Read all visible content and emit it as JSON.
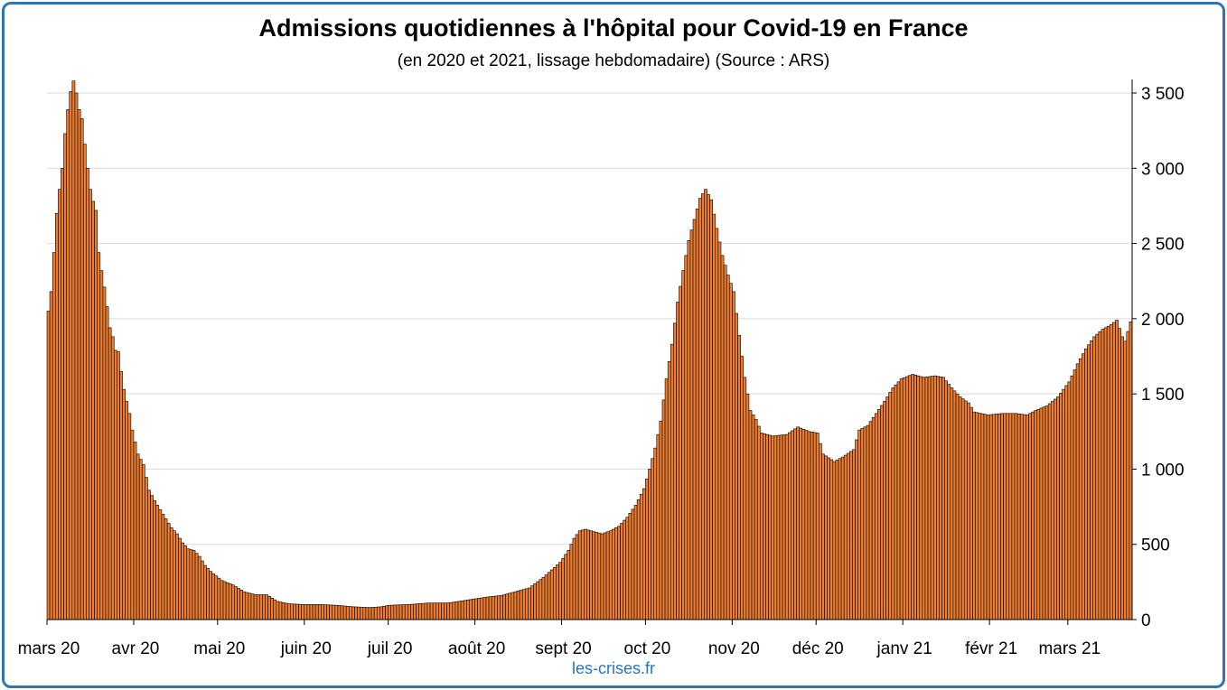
{
  "title": "Admissions quotidiennes à l'hôpital pour Covid-19 en France",
  "subtitle": "(en 2020 et 2021, lissage hebdomadaire) (Source : ARS)",
  "source_footer": "les-crises.fr",
  "colors": {
    "bar": "#ed7d31",
    "bar_edge": "#000000",
    "grid": "#d9d9d9",
    "frame": "#2e75b6"
  },
  "chart_data": {
    "type": "bar",
    "title": "Admissions quotidiennes à l'hôpital pour Covid-19 en France",
    "subtitle": "(en 2020 et 2021, lissage hebdomadaire) (Source : ARS)",
    "y_axis_position": "right",
    "ylim": [
      0,
      3500
    ],
    "yticks": [
      0,
      500,
      1000,
      1500,
      2000,
      2500,
      3000,
      3500
    ],
    "ytick_labels": [
      "0",
      "500",
      "1 000",
      "1 500",
      "2 000",
      "2 500",
      "3 000",
      "3 500"
    ],
    "grid": true,
    "x_start_date": "2020-03-01",
    "x_end_date": "2021-03-23",
    "xtick_labels": [
      "mars 20",
      "avr 20",
      "mai 20",
      "juin 20",
      "juil 20",
      "août 20",
      "sept 20",
      "oct 20",
      "nov 20",
      "déc 20",
      "janv 21",
      "févr 21",
      "mars 21"
    ],
    "control_points": [
      [
        "2020-03-01",
        2050
      ],
      [
        "2020-03-02",
        2180
      ],
      [
        "2020-03-03",
        2440
      ],
      [
        "2020-03-04",
        2700
      ],
      [
        "2020-03-05",
        2860
      ],
      [
        "2020-03-06",
        3000
      ],
      [
        "2020-03-07",
        3230
      ],
      [
        "2020-03-08",
        3390
      ],
      [
        "2020-03-09",
        3510
      ],
      [
        "2020-03-10",
        3580
      ],
      [
        "2020-03-11",
        3500
      ],
      [
        "2020-03-12",
        3390
      ],
      [
        "2020-03-13",
        3330
      ],
      [
        "2020-03-14",
        3160
      ],
      [
        "2020-03-15",
        3000
      ],
      [
        "2020-03-16",
        2860
      ],
      [
        "2020-03-17",
        2780
      ],
      [
        "2020-03-18",
        2720
      ],
      [
        "2020-03-19",
        2440
      ],
      [
        "2020-03-20",
        2320
      ],
      [
        "2020-03-21",
        2210
      ],
      [
        "2020-03-22",
        2080
      ],
      [
        "2020-03-23",
        1940
      ],
      [
        "2020-03-24",
        1880
      ],
      [
        "2020-03-25",
        1790
      ],
      [
        "2020-03-26",
        1780
      ],
      [
        "2020-03-27",
        1650
      ],
      [
        "2020-03-28",
        1530
      ],
      [
        "2020-03-29",
        1450
      ],
      [
        "2020-03-30",
        1370
      ],
      [
        "2020-03-31",
        1260
      ],
      [
        "2020-04-02",
        1100
      ],
      [
        "2020-04-04",
        1030
      ],
      [
        "2020-04-06",
        860
      ],
      [
        "2020-04-08",
        790
      ],
      [
        "2020-04-10",
        730
      ],
      [
        "2020-04-12",
        670
      ],
      [
        "2020-04-14",
        610
      ],
      [
        "2020-04-16",
        570
      ],
      [
        "2020-04-18",
        510
      ],
      [
        "2020-04-20",
        470
      ],
      [
        "2020-04-22",
        460
      ],
      [
        "2020-04-24",
        420
      ],
      [
        "2020-04-26",
        360
      ],
      [
        "2020-04-28",
        320
      ],
      [
        "2020-04-30",
        290
      ],
      [
        "2020-05-02",
        260
      ],
      [
        "2020-05-06",
        230
      ],
      [
        "2020-05-10",
        185
      ],
      [
        "2020-05-14",
        165
      ],
      [
        "2020-05-18",
        165
      ],
      [
        "2020-05-22",
        120
      ],
      [
        "2020-05-26",
        105
      ],
      [
        "2020-05-31",
        100
      ],
      [
        "2020-06-06",
        100
      ],
      [
        "2020-06-12",
        95
      ],
      [
        "2020-06-18",
        85
      ],
      [
        "2020-06-24",
        80
      ],
      [
        "2020-06-28",
        85
      ],
      [
        "2020-07-01",
        95
      ],
      [
        "2020-07-08",
        100
      ],
      [
        "2020-07-15",
        110
      ],
      [
        "2020-07-22",
        110
      ],
      [
        "2020-07-29",
        130
      ],
      [
        "2020-08-05",
        150
      ],
      [
        "2020-08-10",
        160
      ],
      [
        "2020-08-15",
        185
      ],
      [
        "2020-08-20",
        210
      ],
      [
        "2020-08-25",
        280
      ],
      [
        "2020-08-28",
        330
      ],
      [
        "2020-08-31",
        380
      ],
      [
        "2020-09-03",
        460
      ],
      [
        "2020-09-05",
        540
      ],
      [
        "2020-09-07",
        590
      ],
      [
        "2020-09-09",
        600
      ],
      [
        "2020-09-11",
        590
      ],
      [
        "2020-09-13",
        580
      ],
      [
        "2020-09-15",
        570
      ],
      [
        "2020-09-18",
        590
      ],
      [
        "2020-09-21",
        620
      ],
      [
        "2020-09-24",
        680
      ],
      [
        "2020-09-27",
        760
      ],
      [
        "2020-09-30",
        870
      ],
      [
        "2020-10-02",
        1000
      ],
      [
        "2020-10-04",
        1140
      ],
      [
        "2020-10-06",
        1320
      ],
      [
        "2020-10-08",
        1600
      ],
      [
        "2020-10-10",
        1830
      ],
      [
        "2020-10-12",
        2110
      ],
      [
        "2020-10-14",
        2320
      ],
      [
        "2020-10-16",
        2520
      ],
      [
        "2020-10-18",
        2660
      ],
      [
        "2020-10-20",
        2800
      ],
      [
        "2020-10-22",
        2860
      ],
      [
        "2020-10-24",
        2790
      ],
      [
        "2020-10-26",
        2600
      ],
      [
        "2020-10-28",
        2420
      ],
      [
        "2020-10-30",
        2290
      ],
      [
        "2020-11-01",
        2180
      ],
      [
        "2020-11-03",
        1890
      ],
      [
        "2020-11-05",
        1610
      ],
      [
        "2020-11-07",
        1390
      ],
      [
        "2020-11-09",
        1330
      ],
      [
        "2020-11-11",
        1240
      ],
      [
        "2020-11-15",
        1220
      ],
      [
        "2020-11-20",
        1230
      ],
      [
        "2020-11-24",
        1280
      ],
      [
        "2020-11-28",
        1250
      ],
      [
        "2020-12-01",
        1240
      ],
      [
        "2020-12-03",
        1100
      ],
      [
        "2020-12-07",
        1050
      ],
      [
        "2020-12-10",
        1080
      ],
      [
        "2020-12-14",
        1130
      ],
      [
        "2020-12-16",
        1260
      ],
      [
        "2020-12-19",
        1290
      ],
      [
        "2020-12-22",
        1370
      ],
      [
        "2020-12-25",
        1450
      ],
      [
        "2020-12-28",
        1540
      ],
      [
        "2020-12-31",
        1600
      ],
      [
        "2021-01-04",
        1630
      ],
      [
        "2021-01-08",
        1610
      ],
      [
        "2021-01-12",
        1620
      ],
      [
        "2021-01-15",
        1610
      ],
      [
        "2021-01-18",
        1540
      ],
      [
        "2021-01-21",
        1480
      ],
      [
        "2021-01-24",
        1440
      ],
      [
        "2021-01-26",
        1380
      ],
      [
        "2021-01-31",
        1360
      ],
      [
        "2021-02-05",
        1370
      ],
      [
        "2021-02-10",
        1370
      ],
      [
        "2021-02-14",
        1360
      ],
      [
        "2021-02-17",
        1390
      ],
      [
        "2021-02-21",
        1420
      ],
      [
        "2021-02-25",
        1480
      ],
      [
        "2021-03-01",
        1580
      ],
      [
        "2021-03-04",
        1700
      ],
      [
        "2021-03-07",
        1800
      ],
      [
        "2021-03-10",
        1880
      ],
      [
        "2021-03-13",
        1930
      ],
      [
        "2021-03-16",
        1960
      ],
      [
        "2021-03-18",
        1990
      ],
      [
        "2021-03-20",
        1880
      ],
      [
        "2021-03-21",
        1850
      ],
      [
        "2021-03-23",
        1980
      ]
    ]
  }
}
